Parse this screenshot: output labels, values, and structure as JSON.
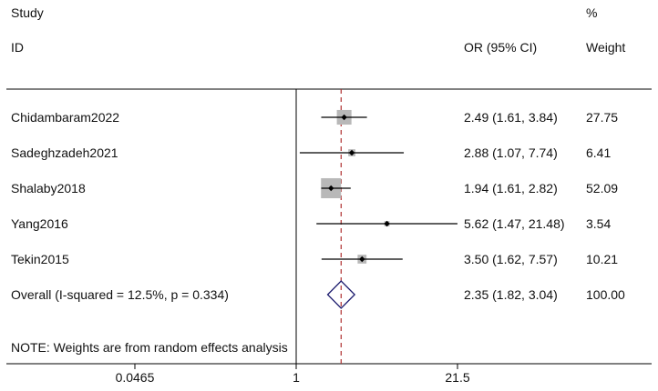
{
  "header": {
    "study_line1": "Study",
    "study_line2": "ID",
    "or_label": "OR (95% CI)",
    "weight_line1": "%",
    "weight_line2": "Weight"
  },
  "note": "NOTE: Weights are from random effects analysis",
  "chart_data": {
    "type": "forest",
    "x_scale": "log",
    "x_ticks": [
      {
        "value": 0.0465,
        "label": "0.0465"
      },
      {
        "value": 1,
        "label": "1"
      },
      {
        "value": 21.5,
        "label": "21.5"
      }
    ],
    "null_line": 1,
    "studies": [
      {
        "id": "Chidambaram2022",
        "or": 2.49,
        "lo": 1.61,
        "hi": 3.84,
        "ci_text": "2.49 (1.61, 3.84)",
        "weight": 27.75,
        "weight_text": "27.75"
      },
      {
        "id": "Sadeghzadeh2021",
        "or": 2.88,
        "lo": 1.07,
        "hi": 7.74,
        "ci_text": "2.88 (1.07, 7.74)",
        "weight": 6.41,
        "weight_text": "6.41"
      },
      {
        "id": "Shalaby2018",
        "or": 1.94,
        "lo": 1.61,
        "hi": 2.82,
        "ci_text": "1.94 (1.61, 2.82)",
        "weight": 52.09,
        "weight_text": "52.09"
      },
      {
        "id": "Yang2016",
        "or": 5.62,
        "lo": 1.47,
        "hi": 21.48,
        "ci_text": "5.62 (1.47, 21.48)",
        "weight": 3.54,
        "weight_text": "3.54"
      },
      {
        "id": "Tekin2015",
        "or": 3.5,
        "lo": 1.62,
        "hi": 7.57,
        "ci_text": "3.50 (1.62, 7.57)",
        "weight": 10.21,
        "weight_text": "10.21"
      }
    ],
    "overall": {
      "label": "Overall  (I-squared = 12.5%, p = 0.334)",
      "or": 2.35,
      "lo": 1.82,
      "hi": 3.04,
      "ci_text": "2.35 (1.82, 3.04)",
      "weight_text": "100.00"
    },
    "colors": {
      "box": "#b8b8b8",
      "diamond": "#1c1b6e",
      "overall_line": "#b03030",
      "ci_line": "#000000"
    }
  }
}
